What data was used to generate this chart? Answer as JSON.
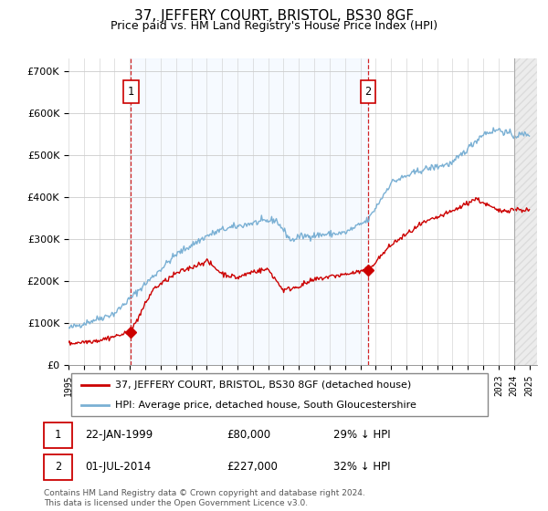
{
  "title": "37, JEFFERY COURT, BRISTOL, BS30 8GF",
  "subtitle": "Price paid vs. HM Land Registry's House Price Index (HPI)",
  "legend_red": "37, JEFFERY COURT, BRISTOL, BS30 8GF (detached house)",
  "legend_blue": "HPI: Average price, detached house, South Gloucestershire",
  "sale1_date": "22-JAN-1999",
  "sale1_price": "£80,000",
  "sale1_hpi": "29% ↓ HPI",
  "sale1_year": 1999.06,
  "sale1_value": 80000,
  "sale2_date": "01-JUL-2014",
  "sale2_price": "£227,000",
  "sale2_hpi": "32% ↓ HPI",
  "sale2_year": 2014.5,
  "sale2_value": 227000,
  "ylabel_ticks": [
    "£0",
    "£100K",
    "£200K",
    "£300K",
    "£400K",
    "£500K",
    "£600K",
    "£700K"
  ],
  "ytick_values": [
    0,
    100000,
    200000,
    300000,
    400000,
    500000,
    600000,
    700000
  ],
  "ylim": [
    0,
    730000
  ],
  "xmin": 1995,
  "xmax": 2025.5,
  "footer": "Contains HM Land Registry data © Crown copyright and database right 2024.\nThis data is licensed under the Open Government Licence v3.0.",
  "red_color": "#cc0000",
  "blue_color": "#7ab0d4",
  "shade_color": "#ddeeff",
  "vline_color": "#cc0000",
  "background_color": "#ffffff",
  "grid_color": "#cccccc"
}
